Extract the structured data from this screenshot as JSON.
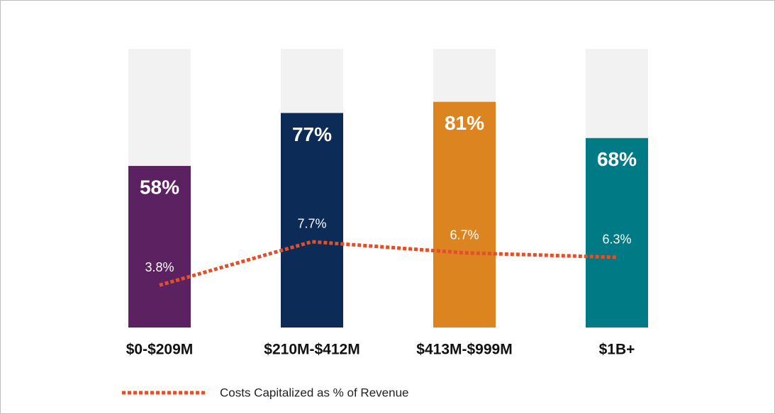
{
  "chart_data": {
    "type": "bar",
    "categories": [
      "$0-$209M",
      "$210M-$412M",
      "$413M-$999M",
      "$1B+"
    ],
    "series": [
      {
        "colors": [
          "#5c2160",
          "#0d2b57",
          "#dc8420",
          "#007b86"
        ],
        "values": [
          58,
          77,
          81,
          68
        ],
        "value_labels": [
          "58%",
          "77%",
          "81%",
          "68%"
        ],
        "track_color": "#f2f2f2"
      },
      {
        "type": "line",
        "name": "Costs Capitalized as % of Revenue",
        "color": "#e0502a",
        "dashed": true,
        "axis": "y2",
        "values": [
          3.8,
          7.7,
          6.7,
          6.3
        ],
        "value_labels": [
          "3.8%",
          "7.7%",
          "6.7%",
          "6.3%"
        ]
      }
    ],
    "ylim": [
      0,
      100
    ],
    "y2lim": [
      0,
      25
    ],
    "legend": "bottom-left"
  }
}
